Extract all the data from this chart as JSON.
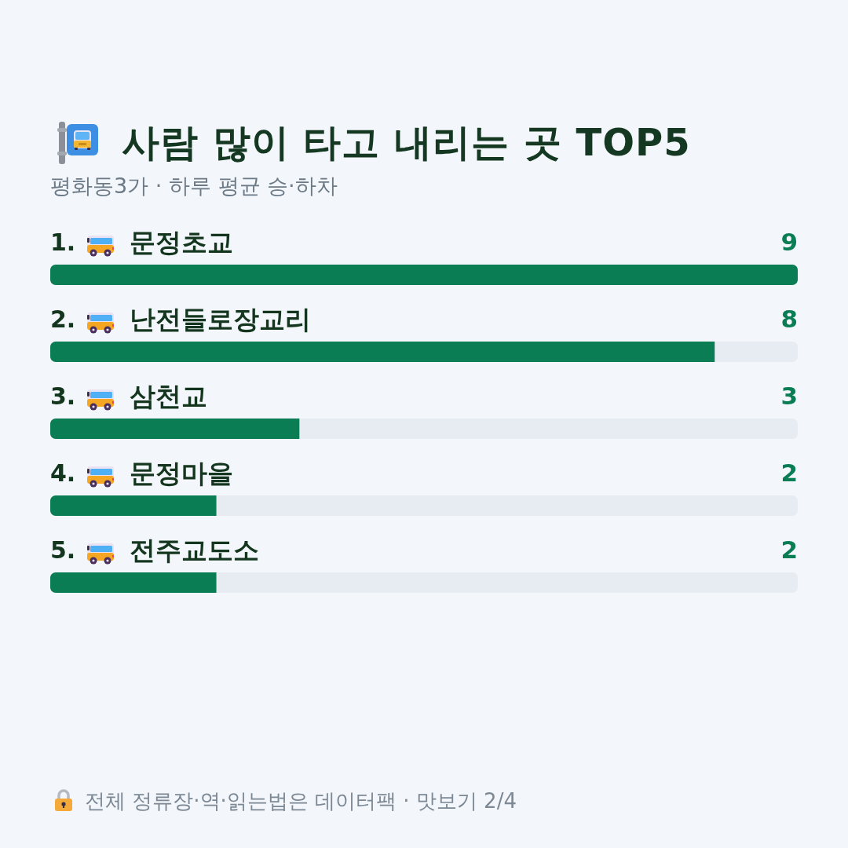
{
  "chart_data": {
    "type": "bar",
    "orientation": "horizontal",
    "title": "사람 많이 타고 내리는 곳 TOP5",
    "subtitle": "평화동3가 · 하루 평균 승·하차",
    "categories": [
      "1. 문정초교",
      "2. 난전들로장교리",
      "3. 삼천교",
      "4. 문정마을",
      "5. 전주교도소"
    ],
    "values": [
      9,
      8,
      3,
      2,
      2
    ],
    "color": "#0a7d55",
    "xlim": [
      0,
      9
    ],
    "tick_labels": "y",
    "data_labels": true,
    "annotations": [
      "전체 정류장·역·읽는법은 데이터팩 · 맛보기 2/4"
    ]
  }
}
